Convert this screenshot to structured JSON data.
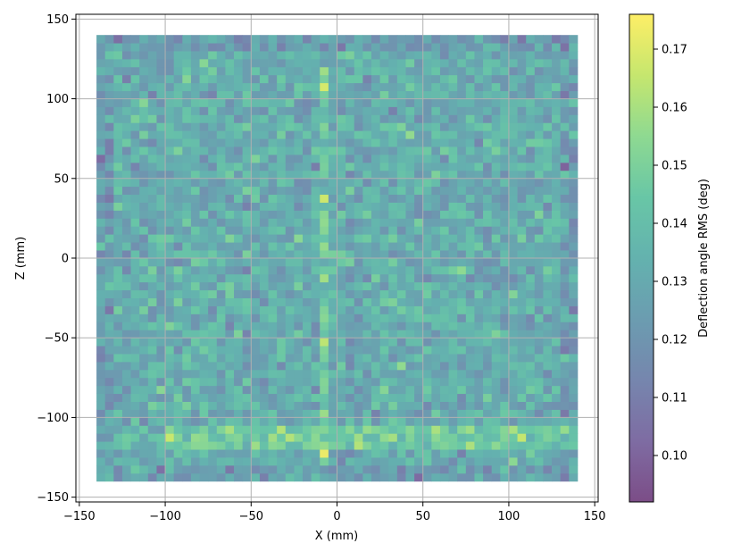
{
  "chart_data": {
    "type": "heatmap",
    "title": "",
    "xlabel": "X (mm)",
    "ylabel": "Z (mm)",
    "xlim": [
      -152,
      152
    ],
    "ylim": [
      -153,
      153
    ],
    "x_ticks": [
      -150,
      -100,
      -50,
      0,
      50,
      100,
      150
    ],
    "y_ticks": [
      -150,
      -100,
      -50,
      0,
      50,
      100,
      150
    ],
    "x_tick_labels": [
      "−150",
      "−100",
      "−50",
      "0",
      "50",
      "100",
      "150"
    ],
    "y_tick_labels": [
      "−150",
      "−100",
      "−50",
      "0",
      "50",
      "100",
      "150"
    ],
    "grid": true,
    "data_extent": {
      "x": [
        -140,
        140
      ],
      "z": [
        -140,
        140
      ]
    },
    "background_rms_deg": 0.132,
    "features": [
      {
        "label": "vertical band",
        "x": [
          -12,
          -3
        ],
        "z": [
          -132,
          118
        ],
        "rms_deg": 0.148
      },
      {
        "label": "horizontal band",
        "x": [
          -100,
          140
        ],
        "z": [
          -118,
          -107
        ],
        "rms_deg": 0.148
      }
    ],
    "colorbar": {
      "label": "Deflection angle RMS (deg)",
      "range": [
        0.092,
        0.176
      ],
      "ticks": [
        0.1,
        0.11,
        0.12,
        0.13,
        0.14,
        0.15,
        0.16,
        0.17
      ],
      "tick_labels": [
        "0.10",
        "0.11",
        "0.12",
        "0.13",
        "0.14",
        "0.15",
        "0.16",
        "0.17"
      ],
      "colormap": "viridis",
      "alpha": 0.7
    }
  }
}
